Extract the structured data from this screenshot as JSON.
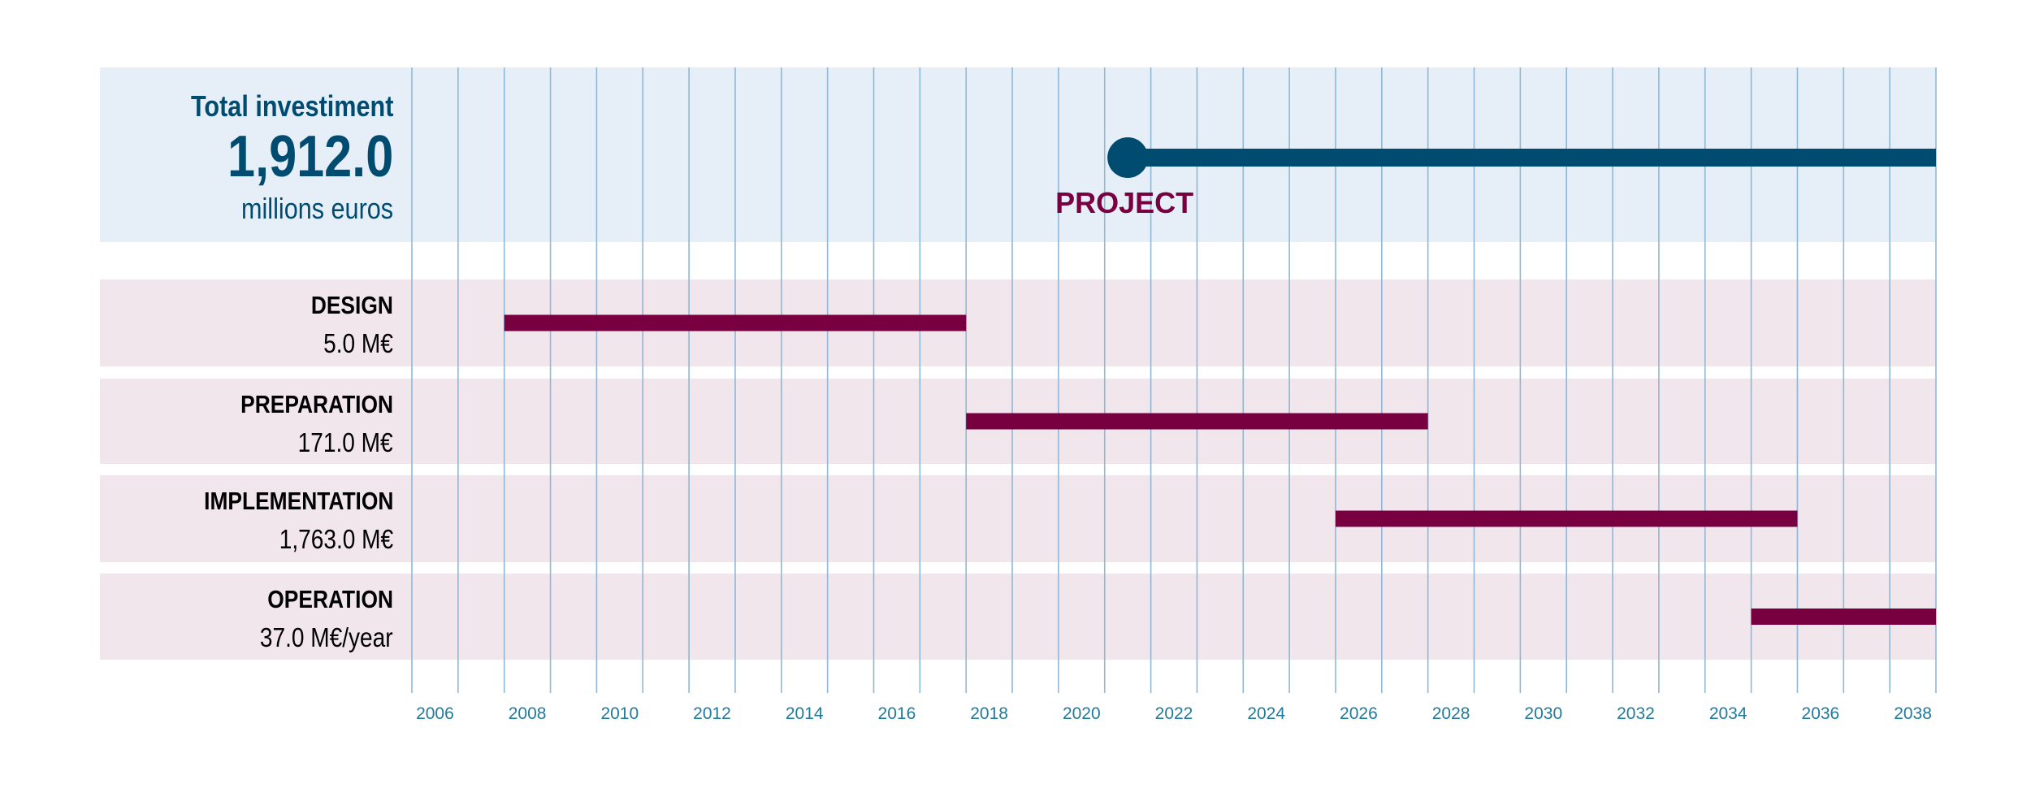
{
  "summary": {
    "title": "Total investiment",
    "value": "1,912.0",
    "unit": "millions euros"
  },
  "colors": {
    "project_bar": "#004b70",
    "phase_bar": "#780040",
    "project_band": "#e6eff7",
    "phase_band": "#f0e6ec",
    "grid": "#8fb8d8",
    "axis_text": "#1f7a9e"
  },
  "chart_data": {
    "type": "gantt",
    "x_range": [
      2006,
      2038
    ],
    "x_ticks": [
      "2006",
      "2008",
      "2010",
      "2012",
      "2014",
      "2016",
      "2018",
      "2020",
      "2022",
      "2024",
      "2026",
      "2028",
      "2030",
      "2032",
      "2034",
      "2036",
      "2038"
    ],
    "grid": "vertical, yearly",
    "project": {
      "label": "PROJECT",
      "start": 2021.5,
      "end": 2038
    },
    "phases": [
      {
        "name": "DESIGN",
        "cost": "5.0 M€",
        "start": 2008,
        "end": 2017
      },
      {
        "name": "PREPARATION",
        "cost": "171.0 M€",
        "start": 2018,
        "end": 2027
      },
      {
        "name": "IMPLEMENTATION",
        "cost": "1,763.0 M€",
        "start": 2026,
        "end": 2035
      },
      {
        "name": "OPERATION",
        "cost": "37.0 M€/year",
        "start": 2035,
        "end": 2038
      }
    ]
  }
}
